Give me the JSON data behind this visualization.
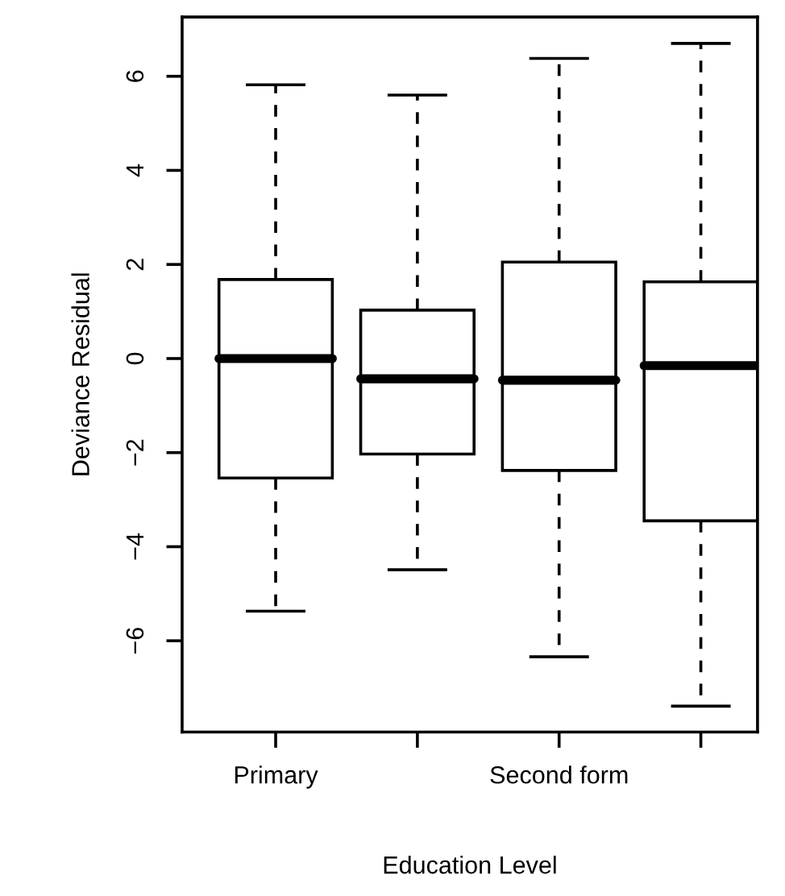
{
  "chart_data": {
    "type": "box",
    "xlabel": "Education Level",
    "ylabel": "Deviance Residual",
    "categories": [
      "Primary",
      null,
      "Second form",
      null
    ],
    "boxes": [
      {
        "low": -5.37,
        "q1": -2.54,
        "median": 0.0,
        "q3": 1.68,
        "high": 5.82
      },
      {
        "low": -4.49,
        "q1": -2.03,
        "median": -0.43,
        "q3": 1.03,
        "high": 5.6
      },
      {
        "low": -6.34,
        "q1": -2.38,
        "median": -0.46,
        "q3": 2.05,
        "high": 6.38
      },
      {
        "low": -7.39,
        "q1": -3.45,
        "median": -0.15,
        "q3": 1.63,
        "high": 6.7
      }
    ],
    "color": "#ffffff",
    "ylim": [
      -7.94,
      7.26
    ],
    "yticks": [
      {
        "value": -6,
        "label": "−6"
      },
      {
        "value": -4,
        "label": "−4"
      },
      {
        "value": -2,
        "label": "−2"
      },
      0,
      2,
      4,
      6
    ],
    "grid": false,
    "legend": false,
    "line_style": "dashed"
  }
}
